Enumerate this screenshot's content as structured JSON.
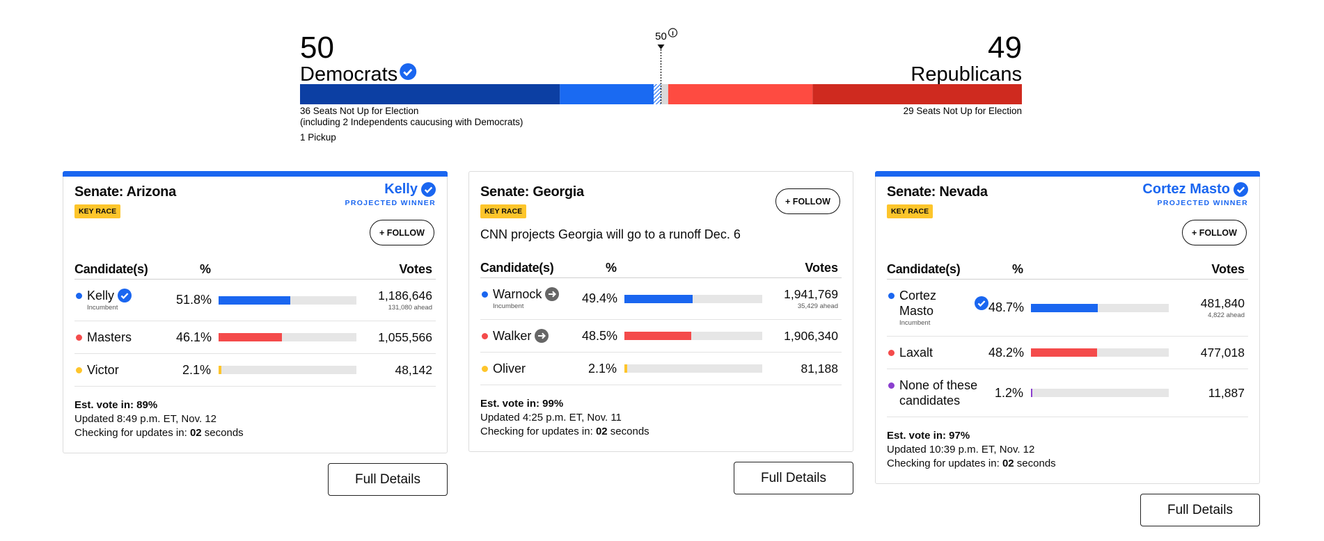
{
  "balance": {
    "dem_seats": 50,
    "dem_label": "Democrats",
    "rep_seats": 49,
    "rep_label": "Republicans",
    "majority": 50,
    "segments": [
      {
        "seats": 36,
        "color": "#0c3fa3"
      },
      {
        "seats": 13,
        "color": "#1a6af2"
      },
      {
        "seats": 1,
        "color": "#1a6af2",
        "hatched": true
      },
      {
        "seats": 1,
        "color": "#d9d9d9"
      },
      {
        "seats": 20,
        "color": "#fe4b41"
      },
      {
        "seats": 29,
        "color": "#cf2a1f"
      }
    ],
    "dem_notes": [
      "36 Seats Not Up for Election",
      "(including 2 Independents caucusing with Democrats)"
    ],
    "pickup": "1 Pickup",
    "rep_note": "29 Seats Not Up for Election"
  },
  "races": [
    {
      "title": "Senate: Arizona",
      "tag": "KEY RACE",
      "winner": "Kelly",
      "winner_label": "PROJECTED WINNER",
      "follow": "+ FOLLOW",
      "columns": [
        "Candidate(s)",
        "%",
        "Votes"
      ],
      "candidates": [
        {
          "name": "Kelly",
          "color": "#1a66f0",
          "icon": "check",
          "note": "Incumbent",
          "pct": 51.8,
          "pct_label": "51.8%",
          "votes": "1,186,646",
          "ahead": "131,080 ahead"
        },
        {
          "name": "Masters",
          "color": "#f44b4b",
          "pct": 46.1,
          "pct_label": "46.1%",
          "votes": "1,055,566"
        },
        {
          "name": "Victor",
          "color": "#fec52b",
          "pct": 2.1,
          "pct_label": "2.1%",
          "votes": "48,142"
        }
      ],
      "est": "Est. vote in: 89%",
      "updated": "Updated 8:49 p.m. ET, Nov. 12",
      "checking": "Checking for updates in:",
      "countdown": "02",
      "unit": "seconds",
      "details": "Full Details"
    },
    {
      "title": "Senate: Georgia",
      "tag": "KEY RACE",
      "follow": "+ FOLLOW",
      "note": "CNN projects Georgia will go to a runoff Dec. 6",
      "columns": [
        "Candidate(s)",
        "%",
        "Votes"
      ],
      "candidates": [
        {
          "name": "Warnock",
          "color": "#1a66f0",
          "icon": "arrow",
          "note": "Incumbent",
          "pct": 49.4,
          "pct_label": "49.4%",
          "votes": "1,941,769",
          "ahead": "35,429 ahead"
        },
        {
          "name": "Walker",
          "color": "#f44b4b",
          "icon": "arrow",
          "pct": 48.5,
          "pct_label": "48.5%",
          "votes": "1,906,340"
        },
        {
          "name": "Oliver",
          "color": "#fec52b",
          "pct": 2.1,
          "pct_label": "2.1%",
          "votes": "81,188"
        }
      ],
      "est": "Est. vote in: 99%",
      "updated": "Updated 4:25 p.m. ET, Nov. 11",
      "checking": "Checking for updates in:",
      "countdown": "02",
      "unit": "seconds",
      "details": "Full Details"
    },
    {
      "title": "Senate: Nevada",
      "tag": "KEY RACE",
      "winner": "Cortez Masto",
      "winner_label": "PROJECTED WINNER",
      "follow": "+ FOLLOW",
      "columns": [
        "Candidate(s)",
        "%",
        "Votes"
      ],
      "candidates": [
        {
          "name": "Cortez Masto",
          "color": "#1a66f0",
          "icon": "check",
          "note": "Incumbent",
          "pct": 48.7,
          "pct_label": "48.7%",
          "votes": "481,840",
          "ahead": "4,822 ahead"
        },
        {
          "name": "Laxalt",
          "color": "#f44b4b",
          "pct": 48.2,
          "pct_label": "48.2%",
          "votes": "477,018"
        },
        {
          "name": "None of these candidates",
          "color": "#8b3fcf",
          "pct": 1.2,
          "pct_label": "1.2%",
          "votes": "11,887"
        }
      ],
      "est": "Est. vote in: 97%",
      "updated": "Updated 10:39 p.m. ET, Nov. 12",
      "checking": "Checking for updates in:",
      "countdown": "02",
      "unit": "seconds",
      "details": "Full Details"
    }
  ]
}
